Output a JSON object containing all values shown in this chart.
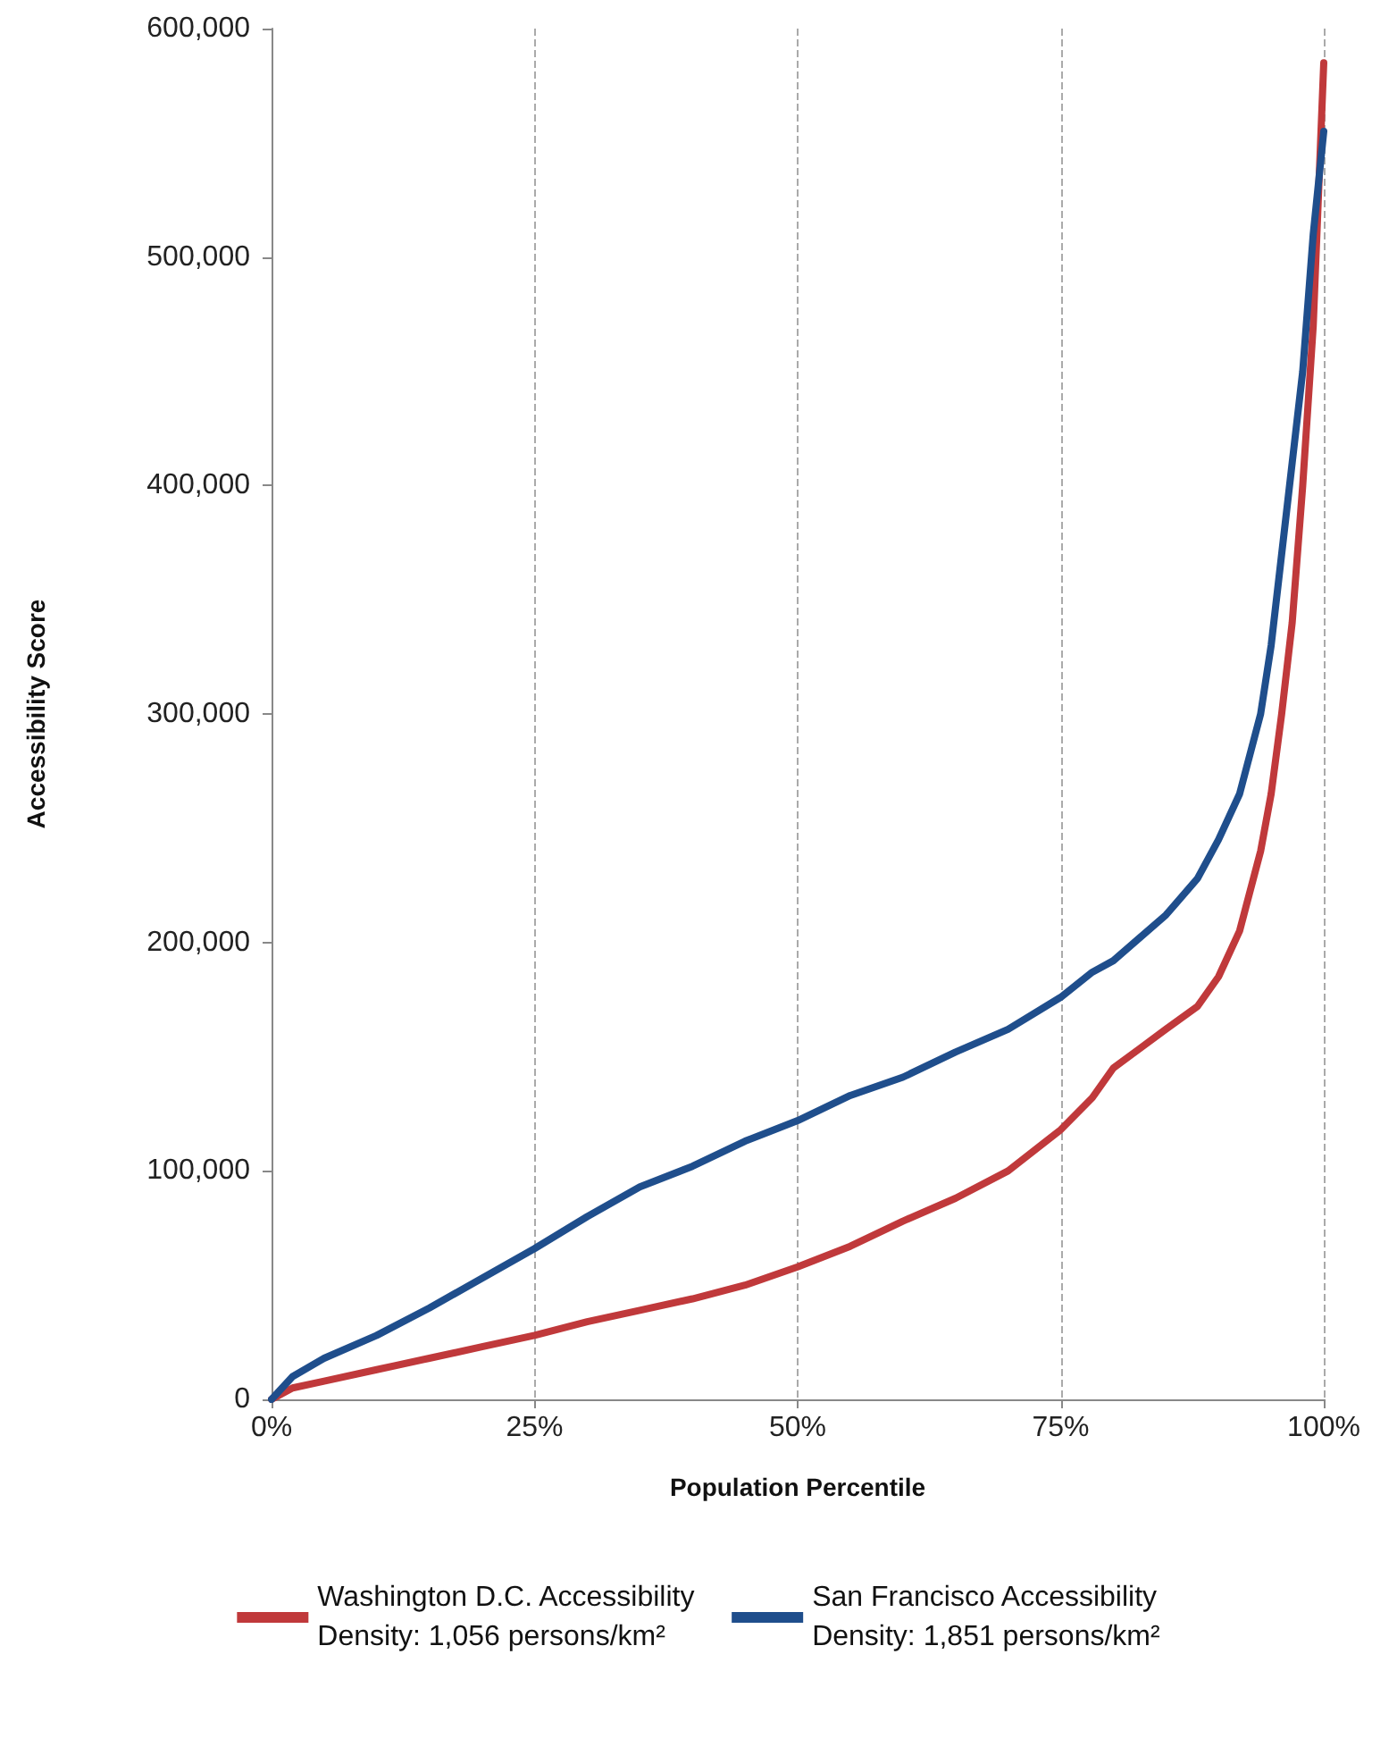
{
  "chart_data": {
    "type": "line",
    "xlabel": "Population Percentile",
    "ylabel": "Accessibility Score",
    "x": [
      0,
      2,
      5,
      10,
      15,
      20,
      25,
      30,
      35,
      40,
      45,
      50,
      55,
      60,
      65,
      70,
      75,
      78,
      80,
      85,
      88,
      90,
      92,
      94,
      95,
      96,
      97,
      98,
      99,
      100
    ],
    "series": [
      {
        "name": "Washington D.C. Accessibility\nDensity: 1,056 persons/km²",
        "color": "#c0393b",
        "values": [
          0,
          5000,
          8000,
          13000,
          18000,
          23000,
          28000,
          34000,
          39000,
          44000,
          50000,
          58000,
          67000,
          78000,
          88000,
          100000,
          118000,
          132000,
          145000,
          162000,
          172000,
          185000,
          205000,
          240000,
          265000,
          300000,
          340000,
          400000,
          470000,
          585000
        ]
      },
      {
        "name": "San Francisco Accessibility\nDensity: 1,851 persons/km²",
        "color": "#1f4e8c",
        "values": [
          0,
          10000,
          18000,
          28000,
          40000,
          53000,
          66000,
          80000,
          93000,
          102000,
          113000,
          122000,
          133000,
          141000,
          152000,
          162000,
          176000,
          187000,
          192000,
          212000,
          228000,
          245000,
          265000,
          300000,
          330000,
          370000,
          410000,
          450000,
          510000,
          555000
        ]
      }
    ],
    "xlim": [
      0,
      100
    ],
    "xticks": [
      {
        "value": 0,
        "label": "0%"
      },
      {
        "value": 25,
        "label": "25%"
      },
      {
        "value": 50,
        "label": "50%"
      },
      {
        "value": 75,
        "label": "75%"
      },
      {
        "value": 100,
        "label": "100%"
      }
    ],
    "ylim": [
      0,
      600000
    ],
    "yticks": [
      {
        "value": 0,
        "label": "0"
      },
      {
        "value": 100000,
        "label": "100,000"
      },
      {
        "value": 200000,
        "label": "200,000"
      },
      {
        "value": 300000,
        "label": "300,000"
      },
      {
        "value": 400000,
        "label": "400,000"
      },
      {
        "value": 500000,
        "label": "500,000"
      },
      {
        "value": 600000,
        "label": "600,000"
      }
    ],
    "grid": "x",
    "legend": "bottom",
    "marker": "none",
    "line_style": "solid"
  }
}
